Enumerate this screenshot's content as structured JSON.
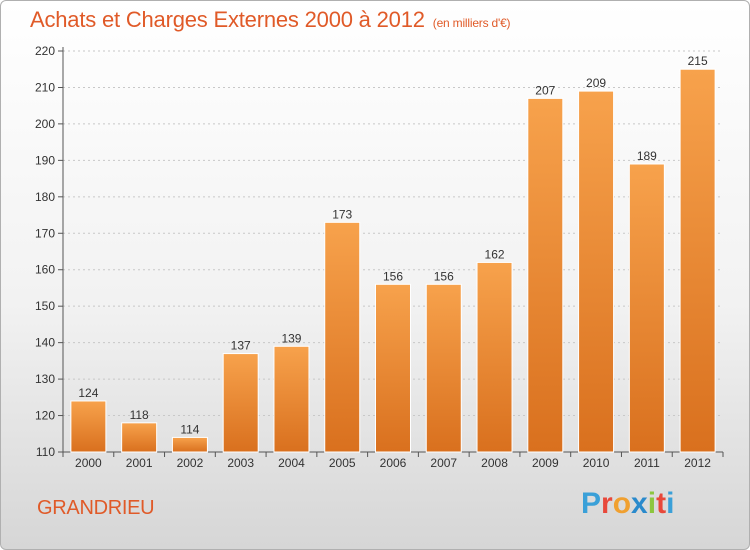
{
  "header": {
    "title": "Achats et Charges Externes 2000 à 2012",
    "subtitle": "(en milliers d'€)"
  },
  "footer": {
    "place": "GRANDRIEU",
    "brand": [
      "P",
      "r",
      "o",
      "x",
      "i",
      "t",
      "i"
    ],
    "brand_colors": [
      "#3aa0d8",
      "#e8483a",
      "#f0a030",
      "#2a8acc",
      "#8cc63e",
      "#e8483a",
      "#3aa0d8"
    ]
  },
  "chart_data": {
    "type": "bar",
    "categories": [
      "2000",
      "2001",
      "2002",
      "2003",
      "2004",
      "2005",
      "2006",
      "2007",
      "2008",
      "2009",
      "2010",
      "2011",
      "2012"
    ],
    "values": [
      124,
      118,
      114,
      137,
      139,
      173,
      156,
      156,
      162,
      207,
      209,
      189,
      215
    ],
    "title": "Achats et Charges Externes 2000 à 2012",
    "xlabel": "",
    "ylabel": "",
    "ylim": [
      110,
      220
    ],
    "yticks": [
      110,
      120,
      130,
      140,
      150,
      160,
      170,
      180,
      190,
      200,
      210,
      220
    ],
    "grid": true,
    "bar_color": "#f0922e"
  }
}
